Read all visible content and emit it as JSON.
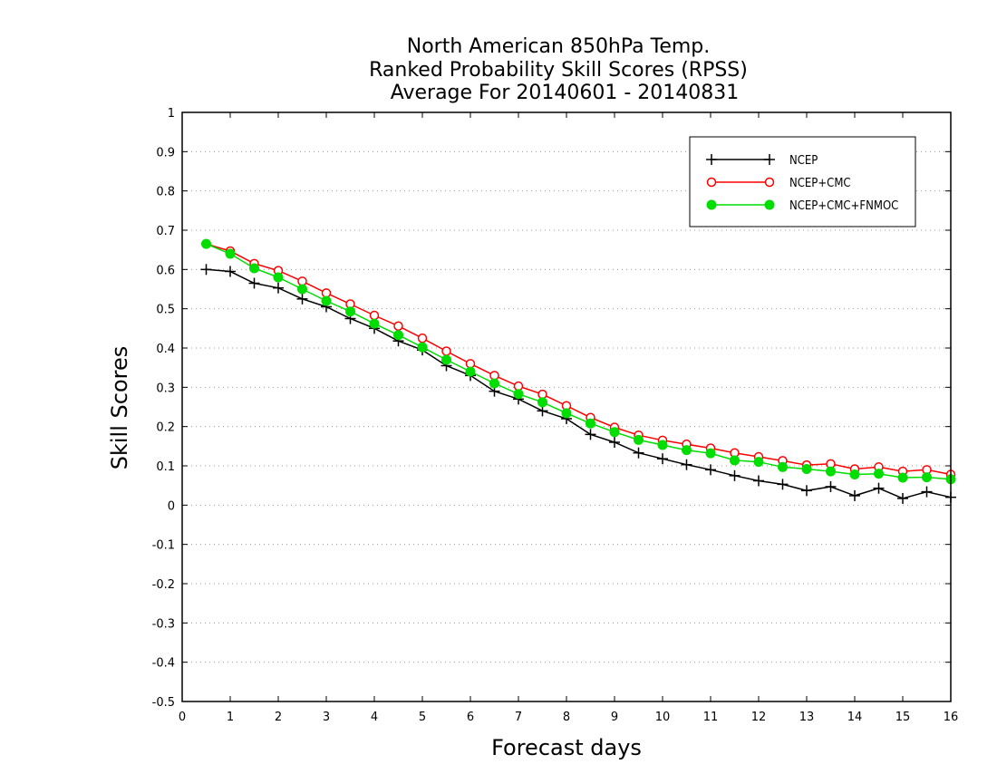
{
  "chart_data": {
    "type": "line",
    "title": [
      "North American 850hPa Temp.",
      "Ranked Probability Skill Scores (RPSS)",
      "Average For 20140601 - 20140831"
    ],
    "xlabel": "Forecast days",
    "ylabel": "Skill Scores",
    "xlim": [
      0,
      16
    ],
    "ylim": [
      -0.5,
      1
    ],
    "xticks": [
      0,
      1,
      2,
      3,
      4,
      5,
      6,
      7,
      8,
      9,
      10,
      11,
      12,
      13,
      14,
      15,
      16
    ],
    "xtick_labels": [
      "0",
      "1",
      "2",
      "3",
      "4",
      "5",
      "6",
      "7",
      "8",
      "9",
      "10",
      "11",
      "12",
      "13",
      "14",
      "15",
      "16"
    ],
    "yticks": [
      -0.5,
      -0.4,
      -0.3,
      -0.2,
      -0.1,
      0,
      0.1,
      0.2,
      0.3,
      0.4,
      0.5,
      0.6,
      0.7,
      0.8,
      0.9,
      1
    ],
    "ytick_labels": [
      "-0.5",
      "-0.4",
      "-0.3",
      "-0.2",
      "-0.1",
      "0",
      "0.1",
      "0.2",
      "0.3",
      "0.4",
      "0.5",
      "0.6",
      "0.7",
      "0.8",
      "0.9",
      "1"
    ],
    "grid": "horizontal-dotted",
    "legend_position": "top-right",
    "x": [
      0.5,
      1,
      1.5,
      2,
      2.5,
      3,
      3.5,
      4,
      4.5,
      5,
      5.5,
      6,
      6.5,
      7,
      7.5,
      8,
      8.5,
      9,
      9.5,
      10,
      10.5,
      11,
      11.5,
      12,
      12.5,
      13,
      13.5,
      14,
      14.5,
      15,
      15.5,
      16
    ],
    "series": [
      {
        "name": "NCEP",
        "color": "#000000",
        "marker": "plus",
        "values": [
          0.6,
          0.595,
          0.565,
          0.553,
          0.525,
          0.505,
          0.475,
          0.45,
          0.418,
          0.395,
          0.355,
          0.33,
          0.29,
          0.27,
          0.24,
          0.22,
          0.18,
          0.16,
          0.133,
          0.118,
          0.103,
          0.09,
          0.075,
          0.062,
          0.053,
          0.037,
          0.047,
          0.024,
          0.043,
          0.017,
          0.034,
          0.02
        ]
      },
      {
        "name": "NCEP+CMC",
        "color": "#ff0000",
        "marker": "open-circle",
        "values": [
          0.665,
          0.647,
          0.615,
          0.597,
          0.57,
          0.54,
          0.512,
          0.483,
          0.456,
          0.425,
          0.392,
          0.36,
          0.33,
          0.303,
          0.282,
          0.253,
          0.223,
          0.198,
          0.178,
          0.165,
          0.155,
          0.145,
          0.133,
          0.123,
          0.113,
          0.102,
          0.105,
          0.092,
          0.097,
          0.086,
          0.09,
          0.078
        ]
      },
      {
        "name": "NCEP+CMC+FNMOC",
        "color": "#00dd00",
        "marker": "filled-circle",
        "values": [
          0.665,
          0.64,
          0.603,
          0.58,
          0.55,
          0.52,
          0.493,
          0.462,
          0.433,
          0.402,
          0.37,
          0.34,
          0.31,
          0.283,
          0.262,
          0.234,
          0.208,
          0.186,
          0.166,
          0.153,
          0.14,
          0.132,
          0.114,
          0.11,
          0.097,
          0.092,
          0.086,
          0.078,
          0.08,
          0.07,
          0.071,
          0.066
        ]
      }
    ]
  }
}
